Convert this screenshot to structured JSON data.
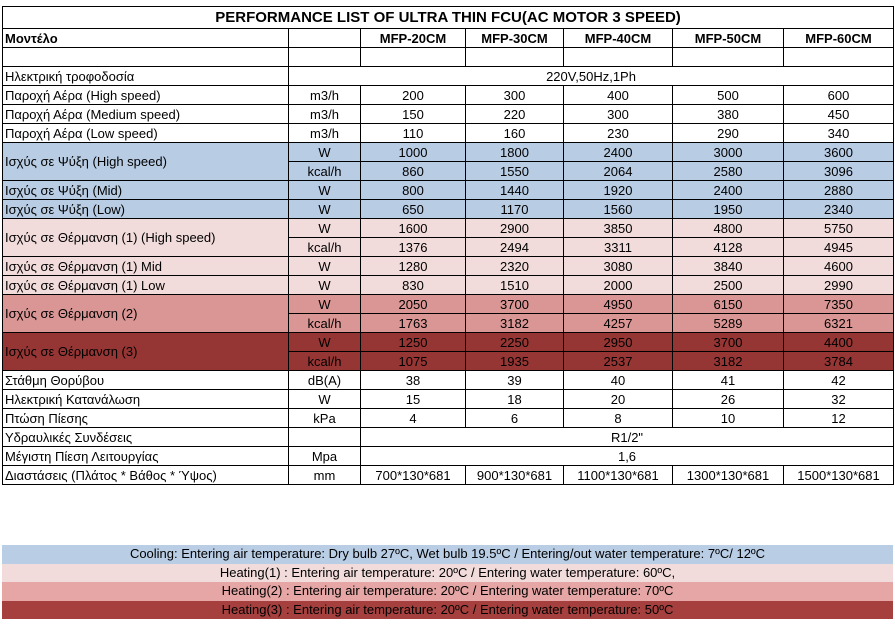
{
  "title": "PERFORMANCE LIST OF ULTRA THIN FCU(AC MOTOR 3 SPEED)",
  "header": {
    "label": "Μοντέλο",
    "models": [
      "MFP-20CM",
      "MFP-30CM",
      "MFP-40CM",
      "MFP-50CM",
      "MFP-60CM"
    ]
  },
  "rows": [
    {
      "label": "Ηλεκτρική τροφοδοσία",
      "value": "220V,50Hz,1Ph"
    },
    {
      "label": "Παροχή Αέρα (High speed)",
      "lines": [
        {
          "unit": "m3/h",
          "values": [
            200,
            300,
            400,
            500,
            600
          ]
        }
      ]
    },
    {
      "label": "Παροχή Αέρα (Medium speed)",
      "lines": [
        {
          "unit": "m3/h",
          "values": [
            150,
            220,
            300,
            380,
            450
          ]
        }
      ]
    },
    {
      "label": "Παροχή Αέρα (Low speed)",
      "lines": [
        {
          "unit": "m3/h",
          "values": [
            110,
            160,
            230,
            290,
            340
          ]
        }
      ]
    },
    {
      "label": "Ισχύς σε Ψύξη (High speed)",
      "color": "#b8cce4",
      "lines": [
        {
          "unit": "W",
          "values": [
            1000,
            1800,
            2400,
            3000,
            3600
          ]
        },
        {
          "unit": "kcal/h",
          "values": [
            860,
            1550,
            2064,
            2580,
            3096
          ]
        }
      ]
    },
    {
      "label": "Ισχύς σε Ψύξη (Mid)",
      "color": "#b8cce4",
      "lines": [
        {
          "unit": "W",
          "values": [
            800,
            1440,
            1920,
            2400,
            2880
          ]
        }
      ]
    },
    {
      "label": "Ισχύς σε Ψύξη (Low)",
      "color": "#b8cce4",
      "lines": [
        {
          "unit": "W",
          "values": [
            650,
            1170,
            1560,
            1950,
            2340
          ]
        }
      ]
    },
    {
      "label": "Ισχύς σε Θέρμανση (1) (High speed)",
      "color": "#f2dcdb",
      "lines": [
        {
          "unit": "W",
          "values": [
            1600,
            2900,
            3850,
            4800,
            5750
          ]
        },
        {
          "unit": "kcal/h",
          "values": [
            1376,
            2494,
            3311,
            4128,
            4945
          ]
        }
      ]
    },
    {
      "label": "Ισχύς σε Θέρμανση (1) Mid",
      "color": "#f2dcdb",
      "lines": [
        {
          "unit": "W",
          "values": [
            1280,
            2320,
            3080,
            3840,
            4600
          ]
        }
      ]
    },
    {
      "label": "Ισχύς σε Θέρμανση (1) Low",
      "color": "#f2dcdb",
      "lines": [
        {
          "unit": "W",
          "values": [
            830,
            1510,
            2000,
            2500,
            2990
          ]
        }
      ]
    },
    {
      "label": "Ισχύς σε Θέρμανση (2)",
      "color": "#da9694",
      "lines": [
        {
          "unit": "W",
          "values": [
            2050,
            3700,
            4950,
            6150,
            7350
          ]
        },
        {
          "unit": "kcal/h",
          "values": [
            1763,
            3182,
            4257,
            5289,
            6321
          ]
        }
      ]
    },
    {
      "label": "Ισχύς σε Θέρμανση (3)",
      "color": "#963634",
      "lines": [
        {
          "unit": "W",
          "values": [
            1250,
            2250,
            2950,
            3700,
            4400
          ]
        },
        {
          "unit": "kcal/h",
          "values": [
            1075,
            1935,
            2537,
            3182,
            3784
          ]
        }
      ]
    },
    {
      "label": "Στάθμη Θορύβου",
      "lines": [
        {
          "unit": "dB(A)",
          "values": [
            38,
            39,
            40,
            41,
            42
          ]
        }
      ]
    },
    {
      "label": "Ηλεκτρική Κατανάλωση",
      "lines": [
        {
          "unit": "W",
          "values": [
            15,
            18,
            20,
            26,
            32
          ]
        }
      ]
    },
    {
      "label": "Πτώση Πίεσης",
      "lines": [
        {
          "unit": "kPa",
          "values": [
            4,
            6,
            8,
            10,
            12
          ]
        }
      ]
    },
    {
      "label": "Υδραυλικές Συνδέσεις",
      "value": "R1/2\""
    },
    {
      "label": "Μέγιστη Πίεση Λειτουργίας",
      "unit": "Mpa",
      "value": "1,6"
    },
    {
      "label": "Διαστάσεις (Πλάτος * Βάθος * Ύψος)",
      "lines": [
        {
          "unit": "mm",
          "values": [
            "700*130*681",
            "900*130*681",
            "1100*130*681",
            "1300*130*681",
            "1500*130*681"
          ]
        }
      ]
    }
  ],
  "legend": [
    {
      "text": "Cooling: Entering air temperature: Dry bulb 27ºC, Wet bulb 19.5ºC / Entering/out water temperature: 7ºC/ 12ºC",
      "color": "#b9cde5"
    },
    {
      "text": "Heating(1) : Entering air temperature: 20ºC / Entering water temperature: 60ºC,",
      "color": "#f2dcdb"
    },
    {
      "text": "Heating(2) : Entering air temperature: 20ºC /  Entering water temperature: 70ºC",
      "color": "#e6a6a5"
    },
    {
      "text": "Heating(3) : Entering air temperature: 20ºC / Entering water temperature: 50ºC",
      "color": "#a5403e"
    }
  ]
}
